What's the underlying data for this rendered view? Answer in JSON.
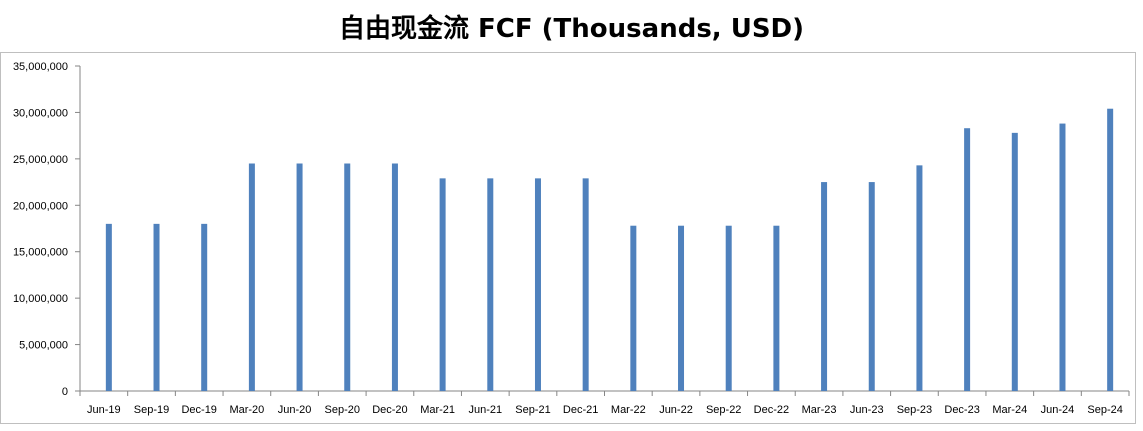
{
  "chart_data": {
    "type": "bar",
    "title": "自由现金流 FCF (Thousands, USD)",
    "xlabel": "",
    "ylabel": "",
    "ylim": [
      0,
      35000000
    ],
    "yticks": [
      {
        "value": 0,
        "label": "0"
      },
      {
        "value": 5000000,
        "label": "5,000,000"
      },
      {
        "value": 10000000,
        "label": "10,000,000"
      },
      {
        "value": 15000000,
        "label": "15,000,000"
      },
      {
        "value": 20000000,
        "label": "20,000,000"
      },
      {
        "value": 25000000,
        "label": "25,000,000"
      },
      {
        "value": 30000000,
        "label": "30,000,000"
      },
      {
        "value": 35000000,
        "label": "35,000,000"
      }
    ],
    "categories": [
      "Jun-19",
      "Sep-19",
      "Dec-19",
      "Mar-20",
      "Jun-20",
      "Sep-20",
      "Dec-20",
      "Mar-21",
      "Jun-21",
      "Sep-21",
      "Dec-21",
      "Mar-22",
      "Jun-22",
      "Sep-22",
      "Dec-22",
      "Mar-23",
      "Jun-23",
      "Sep-23",
      "Dec-23",
      "Mar-24",
      "Jun-24",
      "Sep-24"
    ],
    "values": [
      18000000,
      18000000,
      18000000,
      24500000,
      24500000,
      24500000,
      24500000,
      22900000,
      22900000,
      22900000,
      22900000,
      17800000,
      17800000,
      17800000,
      17800000,
      22500000,
      22500000,
      24300000,
      28300000,
      27800000,
      28800000,
      30400000
    ],
    "grid": false,
    "legend": "none",
    "bar_color": "#4f81bd",
    "axis_color": "#868686"
  }
}
